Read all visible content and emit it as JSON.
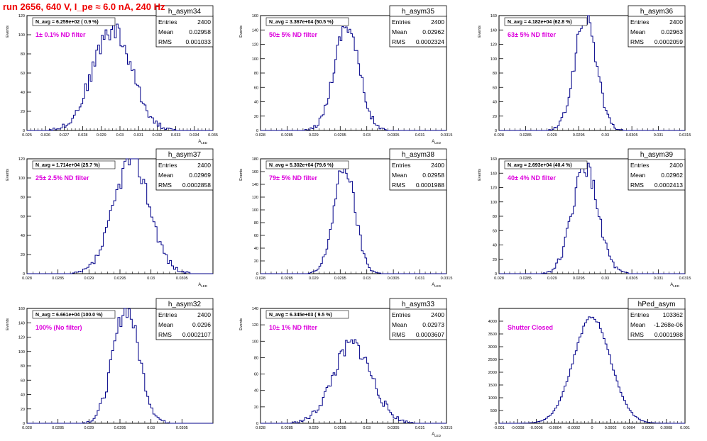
{
  "run_title": "run 2656,   640 V, I_pe ≈ 6.0 nA, 240 Hz",
  "colors": {
    "histogram_line": "#000088",
    "annotation": "#dd00dd",
    "title": "#ee0000",
    "frame": "#000000"
  },
  "chart_data": [
    {
      "type": "histogram",
      "name": "h_asym34",
      "ylabel": "Events",
      "xlabel": "A_LED",
      "nlabel": "N_avg = 6.259e+02 ( 0.9 %)",
      "annotation": "1± 0.1% ND filter",
      "stats": {
        "entries_label": "Entries",
        "entries": "2400",
        "mean_label": "Mean",
        "mean": "0.02958",
        "rms_label": "RMS",
        "rms": "0.001033"
      },
      "xlim": [
        0.025,
        0.035
      ],
      "xticks": [
        "0.025",
        "0.026",
        "0.027",
        "0.028",
        "0.029",
        "0.03",
        "0.031",
        "0.032",
        "0.033",
        "0.034",
        "0.035"
      ],
      "ylim": [
        0,
        120
      ],
      "yticks": [
        "0",
        "20",
        "40",
        "60",
        "80",
        "100",
        "120"
      ],
      "dist": {
        "mean": 0.02958,
        "sigma": 0.00105,
        "peak": 106,
        "bin": 0.0001,
        "seed": 34
      }
    },
    {
      "type": "histogram",
      "name": "h_asym35",
      "ylabel": "Events",
      "xlabel": "A_LED",
      "nlabel": "N_avg = 3.367e+04 (50.5 %)",
      "annotation": "50± 5% ND filter",
      "stats": {
        "entries_label": "Entries",
        "entries": "2400",
        "mean_label": "Mean",
        "mean": "0.02962",
        "rms_label": "RMS",
        "rms": "0.0002324"
      },
      "xlim": [
        0.028,
        0.0315
      ],
      "xticks": [
        "0.028",
        "0.0285",
        "0.029",
        "0.0295",
        "0.03",
        "0.0305",
        "0.031",
        "0.0315"
      ],
      "ylim": [
        0,
        160
      ],
      "yticks": [
        "0",
        "20",
        "40",
        "60",
        "80",
        "100",
        "120",
        "140",
        "160"
      ],
      "dist": {
        "mean": 0.02962,
        "sigma": 0.000232,
        "peak": 148,
        "bin": 3.33e-05,
        "seed": 35
      }
    },
    {
      "type": "histogram",
      "name": "h_asym36",
      "ylabel": "Events",
      "xlabel": "",
      "nlabel": "N_avg = 4.182e+04 (62.8 %)",
      "annotation": "63± 5% ND filter",
      "stats": {
        "entries_label": "Entries",
        "entries": "2400",
        "mean_label": "Mean",
        "mean": "0.02963",
        "rms_label": "RMS",
        "rms": "0.0002059"
      },
      "xlim": [
        0.028,
        0.0315
      ],
      "xticks": [
        "0.028",
        "0.0285",
        "0.029",
        "0.0295",
        "0.03",
        "0.0305",
        "0.031",
        "0.0315"
      ],
      "ylim": [
        0,
        160
      ],
      "yticks": [
        "0",
        "20",
        "40",
        "60",
        "80",
        "100",
        "120",
        "140",
        "160"
      ],
      "dist": {
        "mean": 0.02963,
        "sigma": 0.000206,
        "peak": 158,
        "bin": 3.33e-05,
        "seed": 36
      }
    },
    {
      "type": "histogram",
      "name": "h_asym37",
      "ylabel": "Events",
      "xlabel": "A_LED",
      "nlabel": "N_avg = 1.714e+04 (25.7 %)",
      "annotation": "25± 2.5% ND filter",
      "stats": {
        "entries_label": "Entries",
        "entries": "2400",
        "mean_label": "Mean",
        "mean": "0.02969",
        "rms_label": "RMS",
        "rms": "0.0002858"
      },
      "xlim": [
        0.028,
        0.031
      ],
      "xticks": [
        "0.028",
        "0.0285",
        "0.029",
        "0.0295",
        "0.03",
        "0.0305"
      ],
      "ylim": [
        0,
        120
      ],
      "yticks": [
        "0",
        "20",
        "40",
        "60",
        "80",
        "100",
        "120"
      ],
      "dist": {
        "mean": 0.02969,
        "sigma": 0.000286,
        "peak": 120,
        "bin": 3.33e-05,
        "seed": 37
      }
    },
    {
      "type": "histogram",
      "name": "h_asym38",
      "ylabel": "Events",
      "xlabel": "A_LED",
      "nlabel": "N_avg = 5.302e+04 (79.6 %)",
      "annotation": "79± 5% ND filter",
      "stats": {
        "entries_label": "Entries",
        "entries": "2400",
        "mean_label": "Mean",
        "mean": "0.02958",
        "rms_label": "RMS",
        "rms": "0.0001988"
      },
      "xlim": [
        0.028,
        0.0315
      ],
      "xticks": [
        "0.028",
        "0.0285",
        "0.029",
        "0.0295",
        "0.03",
        "0.0305",
        "0.031",
        "0.0315"
      ],
      "ylim": [
        0,
        180
      ],
      "yticks": [
        "0",
        "20",
        "40",
        "60",
        "80",
        "100",
        "120",
        "140",
        "160",
        "180"
      ],
      "dist": {
        "mean": 0.02958,
        "sigma": 0.000199,
        "peak": 168,
        "bin": 3.33e-05,
        "seed": 38
      }
    },
    {
      "type": "histogram",
      "name": "h_asym39",
      "ylabel": "Events",
      "xlabel": "A_LED",
      "nlabel": "N_avg = 2.693e+04 (40.4 %)",
      "annotation": "40± 4% ND filter",
      "stats": {
        "entries_label": "Entries",
        "entries": "2400",
        "mean_label": "Mean",
        "mean": "0.02962",
        "rms_label": "RMS",
        "rms": "0.0002413"
      },
      "xlim": [
        0.028,
        0.0315
      ],
      "xticks": [
        "0.028",
        "0.0285",
        "0.029",
        "0.0295",
        "0.03",
        "0.0305",
        "0.031",
        "0.0315"
      ],
      "ylim": [
        0,
        160
      ],
      "yticks": [
        "0",
        "20",
        "40",
        "60",
        "80",
        "100",
        "120",
        "140",
        "160"
      ],
      "dist": {
        "mean": 0.02962,
        "sigma": 0.000241,
        "peak": 148,
        "bin": 3.33e-05,
        "seed": 39
      }
    },
    {
      "type": "histogram",
      "name": "h_asym32",
      "ylabel": "Events",
      "xlabel": "",
      "nlabel": "N_avg = 6.661e+04 (100.0 %)",
      "annotation": "100% (No filter)",
      "stats": {
        "entries_label": "Entries",
        "entries": "2400",
        "mean_label": "Mean",
        "mean": "0.0296",
        "rms_label": "RMS",
        "rms": "0.0002107"
      },
      "xlim": [
        0.028,
        0.031
      ],
      "xticks": [
        "0.028",
        "0.0285",
        "0.029",
        "0.0295",
        "0.03",
        "0.0305"
      ],
      "ylim": [
        0,
        160
      ],
      "yticks": [
        "0",
        "20",
        "40",
        "60",
        "80",
        "100",
        "120",
        "140",
        "160"
      ],
      "dist": {
        "mean": 0.0296,
        "sigma": 0.000211,
        "peak": 160,
        "bin": 3.33e-05,
        "seed": 32
      }
    },
    {
      "type": "histogram",
      "name": "h_asym33",
      "ylabel": "Events",
      "xlabel": "A_LED",
      "nlabel": "N_avg = 6.345e+03 ( 9.5 %)",
      "annotation": "10± 1% ND filter",
      "stats": {
        "entries_label": "Entries",
        "entries": "2400",
        "mean_label": "Mean",
        "mean": "0.02973",
        "rms_label": "RMS",
        "rms": "0.0003607"
      },
      "xlim": [
        0.028,
        0.0315
      ],
      "xticks": [
        "0.028",
        "0.0285",
        "0.029",
        "0.0295",
        "0.03",
        "0.0305",
        "0.031",
        "0.0315"
      ],
      "ylim": [
        0,
        140
      ],
      "yticks": [
        "0",
        "20",
        "40",
        "60",
        "80",
        "100",
        "120",
        "140"
      ],
      "dist": {
        "mean": 0.02973,
        "sigma": 0.000361,
        "peak": 96,
        "bin": 3.33e-05,
        "seed": 33
      }
    },
    {
      "type": "histogram",
      "name": "hPed_asym",
      "ylabel": "",
      "xlabel": "",
      "nlabel": "",
      "annotation": "Shutter Closed",
      "stats": {
        "entries_label": "Entries",
        "entries": "103362",
        "mean_label": "Mean",
        "mean": "-1.268e-06",
        "rms_label": "RMS",
        "rms": "0.0001988"
      },
      "xlim": [
        -0.001,
        0.001
      ],
      "xticks": [
        "-0.001",
        "-0.0008",
        "-0.0006",
        "-0.0004",
        "-0.0002",
        "0",
        "0.0002",
        "0.0004",
        "0.0006",
        "0.0008",
        "0.001"
      ],
      "ylim": [
        0,
        4500
      ],
      "yticks": [
        "0",
        "500",
        "1000",
        "1500",
        "2000",
        "2500",
        "3000",
        "3500",
        "4000"
      ],
      "dist": {
        "mean": 0.0,
        "sigma": 0.000199,
        "peak": 4150,
        "bin": 2e-05,
        "seed": 40
      }
    }
  ]
}
